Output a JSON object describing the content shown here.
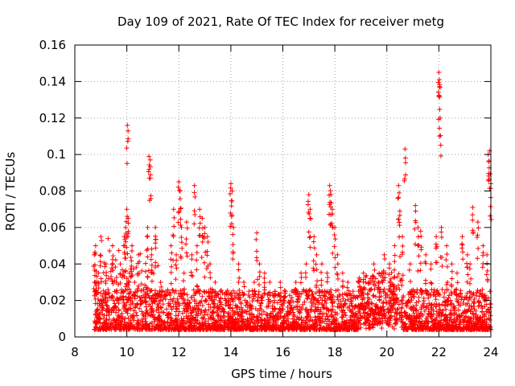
{
  "chart_data": {
    "type": "scatter",
    "title": "Day 109 of 2021, Rate Of TEC Index for receiver metg",
    "xlabel": "GPS time / hours",
    "ylabel": "ROTI / TECUs",
    "xlim": [
      8,
      24
    ],
    "ylim": [
      0,
      0.16
    ],
    "xticks": [
      8,
      10,
      12,
      14,
      16,
      18,
      20,
      22,
      24
    ],
    "yticks": [
      0,
      0.02,
      0.04,
      0.06,
      0.08,
      0.1,
      0.12,
      0.14,
      0.16
    ],
    "xtick_labels": [
      "8",
      "10",
      "12",
      "14",
      "16",
      "18",
      "20",
      "22",
      "24"
    ],
    "ytick_labels": [
      "0",
      "0.02",
      "0.04",
      "0.06",
      "0.08",
      "0.1",
      "0.12",
      "0.14",
      "0.16"
    ],
    "grid": true,
    "marker": "+",
    "color": "#ff0000",
    "series": [
      {
        "name": "ROTI",
        "x": [
          8.75,
          8.8,
          8.9,
          9.0,
          9.1,
          9.2,
          9.3,
          9.45,
          9.6,
          9.75,
          9.85,
          9.9,
          9.95,
          10.0,
          10.02,
          10.05,
          10.1,
          10.2,
          10.3,
          10.45,
          10.6,
          10.8,
          10.85,
          10.9,
          10.95,
          11.1,
          11.3,
          11.5,
          11.7,
          11.8,
          11.9,
          12.0,
          12.05,
          12.1,
          12.2,
          12.3,
          12.5,
          12.6,
          12.7,
          12.8,
          12.9,
          13.0,
          13.1,
          13.2,
          13.4,
          13.6,
          13.8,
          14.0,
          14.05,
          14.1,
          14.3,
          14.5,
          14.7,
          14.9,
          15.0,
          15.1,
          15.3,
          15.5,
          15.7,
          15.9,
          16.1,
          16.3,
          16.5,
          16.7,
          16.9,
          17.0,
          17.05,
          17.2,
          17.3,
          17.5,
          17.7,
          17.8,
          17.85,
          17.9,
          18.0,
          18.1,
          18.3,
          18.5,
          18.7,
          18.9,
          19.1,
          19.3,
          19.5,
          19.7,
          19.9,
          20.1,
          20.3,
          20.45,
          20.5,
          20.6,
          20.7,
          20.9,
          21.1,
          21.2,
          21.3,
          21.5,
          21.7,
          21.9,
          22.0,
          22.02,
          22.05,
          22.1,
          22.3,
          22.5,
          22.7,
          22.9,
          23.1,
          23.2,
          23.3,
          23.5,
          23.7,
          23.85,
          23.9,
          23.95,
          24.0
        ],
        "y": [
          0.045,
          0.05,
          0.03,
          0.055,
          0.02,
          0.04,
          0.015,
          0.05,
          0.03,
          0.04,
          0.025,
          0.055,
          0.06,
          0.07,
          0.116,
          0.065,
          0.035,
          0.05,
          0.03,
          0.045,
          0.02,
          0.06,
          0.099,
          0.097,
          0.045,
          0.06,
          0.03,
          0.025,
          0.05,
          0.07,
          0.045,
          0.085,
          0.08,
          0.06,
          0.035,
          0.063,
          0.045,
          0.083,
          0.05,
          0.07,
          0.065,
          0.06,
          0.055,
          0.04,
          0.03,
          0.025,
          0.02,
          0.084,
          0.08,
          0.06,
          0.04,
          0.03,
          0.025,
          0.03,
          0.057,
          0.04,
          0.035,
          0.03,
          0.025,
          0.03,
          0.025,
          0.02,
          0.03,
          0.035,
          0.04,
          0.078,
          0.07,
          0.055,
          0.045,
          0.04,
          0.035,
          0.083,
          0.078,
          0.07,
          0.06,
          0.045,
          0.035,
          0.03,
          0.025,
          0.03,
          0.035,
          0.03,
          0.04,
          0.035,
          0.045,
          0.04,
          0.05,
          0.083,
          0.069,
          0.055,
          0.103,
          0.04,
          0.072,
          0.06,
          0.058,
          0.045,
          0.04,
          0.055,
          0.145,
          0.141,
          0.12,
          0.06,
          0.05,
          0.04,
          0.035,
          0.055,
          0.045,
          0.04,
          0.071,
          0.063,
          0.05,
          0.045,
          0.1,
          0.102,
          0.084
        ]
      }
    ]
  }
}
